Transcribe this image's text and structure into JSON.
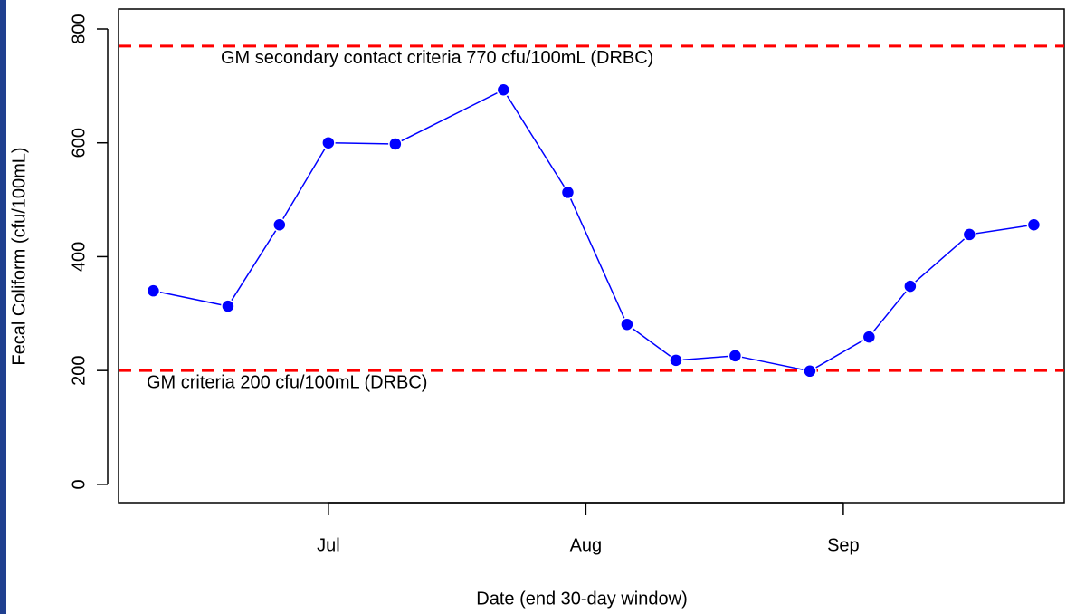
{
  "chart_data": {
    "type": "line",
    "x_label": "Date (end 30-day window)",
    "y_label": "Fecal Coliform (cfu/100mL)",
    "x": [
      6.32,
      6.61,
      6.81,
      7.0,
      7.26,
      7.68,
      7.93,
      8.16,
      8.35,
      8.58,
      8.87,
      9.1,
      9.26,
      9.49,
      9.74
    ],
    "series": [
      {
        "color": "#0000ff",
        "values": [
          340,
          313,
          456,
          600,
          598,
          693,
          513,
          281,
          218,
          226,
          199,
          259,
          348,
          439,
          456
        ]
      }
    ],
    "xlim": [
      6.185,
      9.858
    ],
    "xticks": [
      {
        "value": 7,
        "label": "Jul"
      },
      {
        "value": 8,
        "label": "Aug"
      },
      {
        "value": 9,
        "label": "Sep"
      }
    ],
    "ylim": [
      -32,
      835
    ],
    "yticks": [
      0,
      200,
      400,
      600,
      800
    ],
    "grid": false,
    "reference_lines": [
      {
        "value": 770,
        "label": "GM secondary contact criteria 770 cfu/100mL (DRBC)",
        "color": "#ff0000"
      },
      {
        "value": 200,
        "label": "GM criteria 200 cfu/100mL (DRBC)",
        "color": "#ff0000"
      }
    ]
  }
}
